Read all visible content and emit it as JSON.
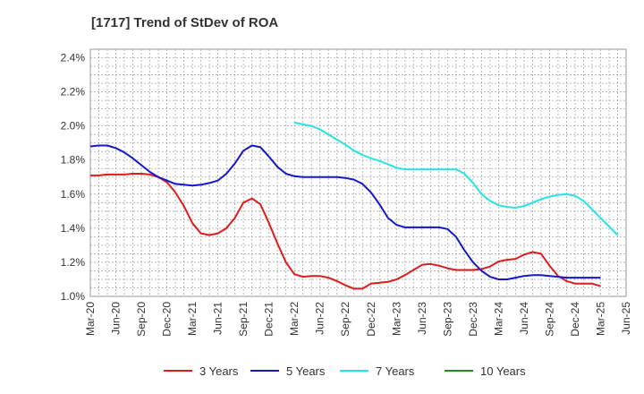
{
  "chart_data": {
    "type": "line",
    "title": "[1717]  Trend of StDev of ROA",
    "xlabel": "",
    "ylabel": "",
    "ylim": [
      1.0,
      2.45
    ],
    "y_ticks": [
      "1.0%",
      "1.2%",
      "1.4%",
      "1.6%",
      "1.8%",
      "2.0%",
      "2.2%",
      "2.4%"
    ],
    "x_tick_labels": [
      "Mar-20",
      "Jun-20",
      "Sep-20",
      "Dec-20",
      "Mar-21",
      "Jun-21",
      "Sep-21",
      "Dec-21",
      "Mar-22",
      "Jun-22",
      "Sep-22",
      "Dec-22",
      "Mar-23",
      "Jun-23",
      "Sep-23",
      "Dec-23",
      "Mar-24",
      "Jun-24",
      "Sep-24",
      "Dec-24",
      "Mar-25",
      "Jun-25"
    ],
    "grid": true,
    "legend_position": "bottom",
    "series": [
      {
        "name": "3 Years",
        "color": "#dd1c1c",
        "start_month": 0,
        "values": [
          1.71,
          1.71,
          1.715,
          1.715,
          1.715,
          1.72,
          1.72,
          1.715,
          1.7,
          1.67,
          1.61,
          1.53,
          1.43,
          1.37,
          1.36,
          1.37,
          1.4,
          1.46,
          1.55,
          1.575,
          1.54,
          1.43,
          1.31,
          1.2,
          1.13,
          1.115,
          1.12,
          1.12,
          1.11,
          1.09,
          1.065,
          1.045,
          1.045,
          1.075,
          1.08,
          1.085,
          1.1,
          1.125,
          1.155,
          1.185,
          1.19,
          1.18,
          1.165,
          1.155,
          1.155,
          1.155,
          1.16,
          1.175,
          1.205,
          1.215,
          1.22,
          1.245,
          1.26,
          1.25,
          1.18,
          1.12,
          1.09,
          1.075,
          1.075,
          1.075,
          1.06
        ]
      },
      {
        "name": "5 Years",
        "color": "#1616cc",
        "start_month": 0,
        "values": [
          1.88,
          1.885,
          1.885,
          1.87,
          1.845,
          1.81,
          1.77,
          1.73,
          1.7,
          1.68,
          1.66,
          1.655,
          1.65,
          1.655,
          1.665,
          1.68,
          1.72,
          1.78,
          1.855,
          1.885,
          1.875,
          1.82,
          1.76,
          1.72,
          1.705,
          1.7,
          1.7,
          1.7,
          1.7,
          1.7,
          1.695,
          1.685,
          1.66,
          1.61,
          1.54,
          1.46,
          1.42,
          1.405,
          1.405,
          1.405,
          1.405,
          1.405,
          1.395,
          1.35,
          1.27,
          1.2,
          1.15,
          1.115,
          1.1,
          1.1,
          1.11,
          1.12,
          1.125,
          1.125,
          1.12,
          1.115,
          1.11,
          1.11,
          1.11,
          1.11,
          1.11
        ]
      },
      {
        "name": "7 Years",
        "color": "#22e5e5",
        "start_month": 24,
        "values": [
          2.02,
          2.01,
          2.0,
          1.98,
          1.95,
          1.92,
          1.89,
          1.855,
          1.83,
          1.81,
          1.795,
          1.775,
          1.755,
          1.745,
          1.745,
          1.745,
          1.745,
          1.745,
          1.745,
          1.745,
          1.72,
          1.665,
          1.6,
          1.56,
          1.535,
          1.525,
          1.52,
          1.53,
          1.55,
          1.57,
          1.585,
          1.595,
          1.6,
          1.59,
          1.56,
          1.51,
          1.46,
          1.41,
          1.36
        ]
      },
      {
        "name": "10 Years",
        "color": "#228b22",
        "start_month": 0,
        "values": []
      }
    ]
  }
}
